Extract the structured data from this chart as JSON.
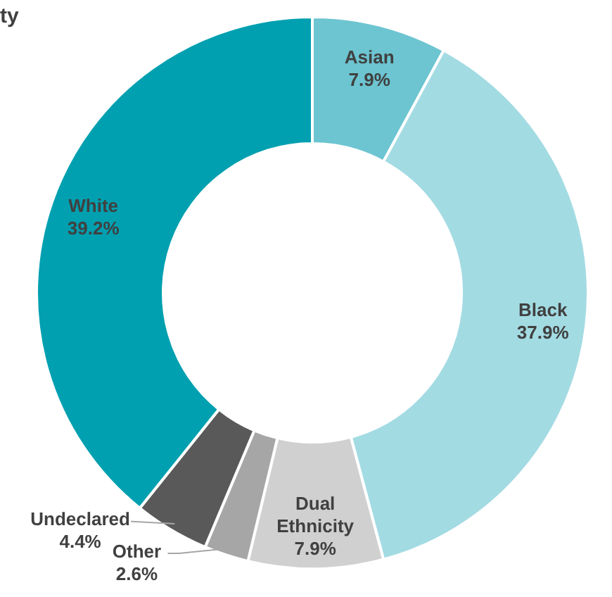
{
  "chart_data": {
    "type": "donut",
    "title": "ty",
    "categories": [
      "Asian",
      "Black",
      "Dual Ethnicity",
      "Other",
      "Undeclared",
      "White"
    ],
    "values": [
      7.9,
      37.9,
      7.9,
      2.6,
      4.4,
      39.2
    ],
    "colors": [
      "#6cc5d1",
      "#a3dbe3",
      "#d0d0d0",
      "#a6a6a6",
      "#595959",
      "#00a0b0"
    ],
    "value_labels": [
      "7.9%",
      "37.9%",
      "7.9%",
      "2.6%",
      "4.4%",
      "39.2%"
    ]
  }
}
